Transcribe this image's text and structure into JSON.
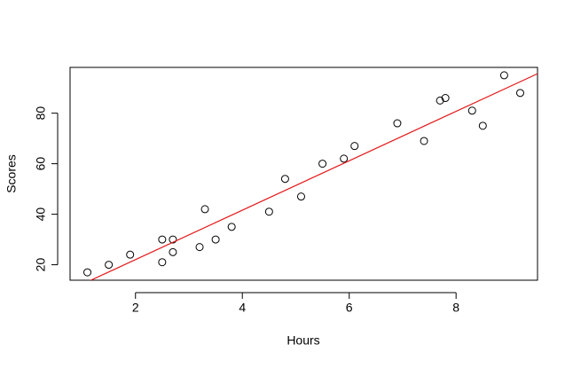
{
  "chart_data": {
    "type": "scatter",
    "xlabel": "Hours",
    "ylabel": "Scores",
    "x": [
      2.5,
      5.1,
      3.2,
      8.5,
      3.5,
      1.5,
      9.2,
      5.5,
      8.3,
      2.7,
      7.7,
      5.9,
      4.5,
      3.3,
      1.1,
      8.9,
      2.5,
      1.9,
      6.1,
      7.4,
      2.7,
      4.8,
      3.8,
      6.9,
      7.8
    ],
    "values": [
      21,
      47,
      27,
      75,
      30,
      20,
      88,
      60,
      81,
      25,
      85,
      62,
      41,
      42,
      17,
      95,
      30,
      24,
      67,
      69,
      30,
      54,
      35,
      76,
      86
    ],
    "color": "#000000",
    "trend_line": {
      "intercept": 2.48,
      "slope": 9.78,
      "color": "#e41a1c"
    },
    "xlim": [
      0.776,
      9.524
    ],
    "ylim": [
      13.88,
      98.12
    ],
    "xticks": [
      2,
      4,
      6,
      8
    ],
    "yticks": [
      20,
      40,
      60,
      80
    ]
  }
}
